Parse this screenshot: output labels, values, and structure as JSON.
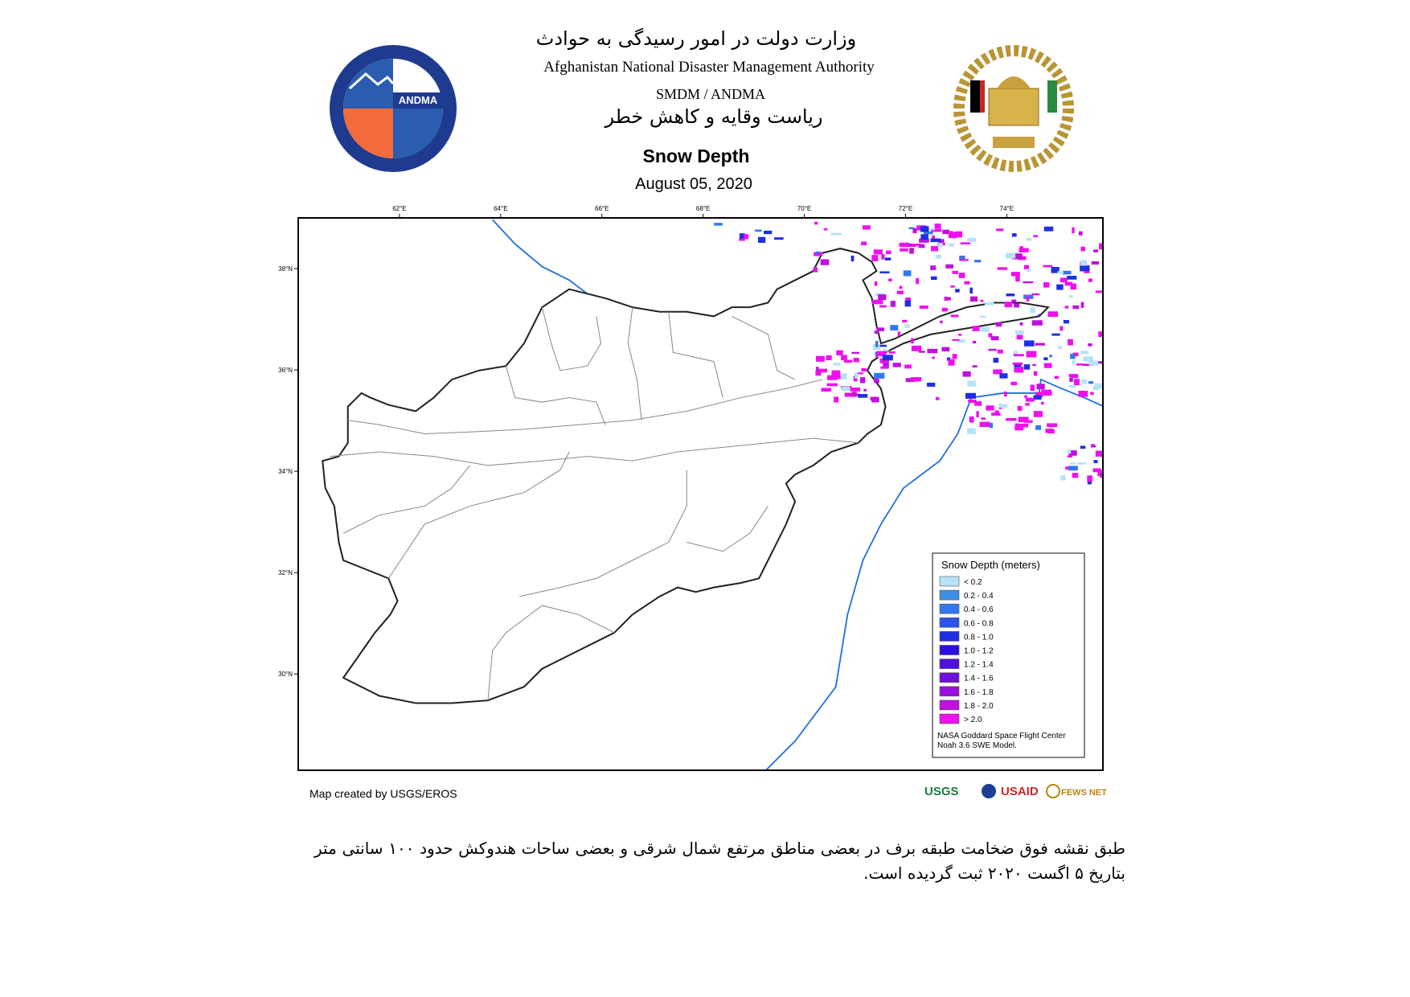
{
  "header": {
    "ministry_fa": "وزارت دولت در امور رسیدگی به حوادث",
    "agency_en": "Afghanistan National Disaster Management Authority",
    "unit": "SMDM / ANDMA",
    "directorate_fa": "ریاست وقایه و کاهش خطر",
    "logo_text": "ANDMA"
  },
  "map": {
    "title": "Snow Depth",
    "date": "August 05, 2020",
    "lonlim": [
      60.0,
      75.9
    ],
    "latlim": [
      28.1,
      39.0
    ],
    "lon_ticks": [
      {
        "value": 62,
        "label": "62°E"
      },
      {
        "value": 64,
        "label": "64°E"
      },
      {
        "value": 66,
        "label": "66°E"
      },
      {
        "value": 68,
        "label": "68°E"
      },
      {
        "value": 70,
        "label": "70°E"
      },
      {
        "value": 72,
        "label": "72°E"
      },
      {
        "value": 74,
        "label": "74°E"
      }
    ],
    "lat_ticks": [
      {
        "value": 38,
        "label": "38°N"
      },
      {
        "value": 36,
        "label": "36°N"
      },
      {
        "value": 34,
        "label": "34°N"
      },
      {
        "value": 32,
        "label": "32°N"
      },
      {
        "value": 30,
        "label": "30°N"
      }
    ]
  },
  "legend": {
    "title": "Snow Depth (meters)",
    "items": [
      {
        "label": "< 0.2",
        "color": "#b5e3f7"
      },
      {
        "label": "0.2 - 0.4",
        "color": "#3d90e6"
      },
      {
        "label": "0.4 - 0.6",
        "color": "#3377ee"
      },
      {
        "label": "0.6 - 0.8",
        "color": "#2b55e8"
      },
      {
        "label": "0.8 - 1.0",
        "color": "#1f2fe0"
      },
      {
        "label": "1.0 - 1.2",
        "color": "#2a10e0"
      },
      {
        "label": "1.2 - 1.4",
        "color": "#5010e0"
      },
      {
        "label": "1.4 - 1.6",
        "color": "#7010e0"
      },
      {
        "label": "1.6 - 1.8",
        "color": "#9a10e0"
      },
      {
        "label": "1.8 - 2.0",
        "color": "#c010e0"
      },
      {
        "label": "> 2.0",
        "color": "#ee10ee"
      }
    ],
    "source": [
      "NASA Goddard Space Flight Center",
      "Noah 3.6 SWE Model."
    ]
  },
  "credit": "Map created by USGS/EROS",
  "partner_logos": [
    "USGS",
    "USAID",
    "FEWS NET"
  ],
  "footer": {
    "text": "طبق نقشه فوق ضخامت طبقه برف در بعضی مناطق مرتفع شمال شرقی و بعضی ساحات هندوکش حدود ۱۰۰ سانتی متر بتاریخ ۵ اگست ۲۰۲۰ ثبت گردیده است."
  }
}
